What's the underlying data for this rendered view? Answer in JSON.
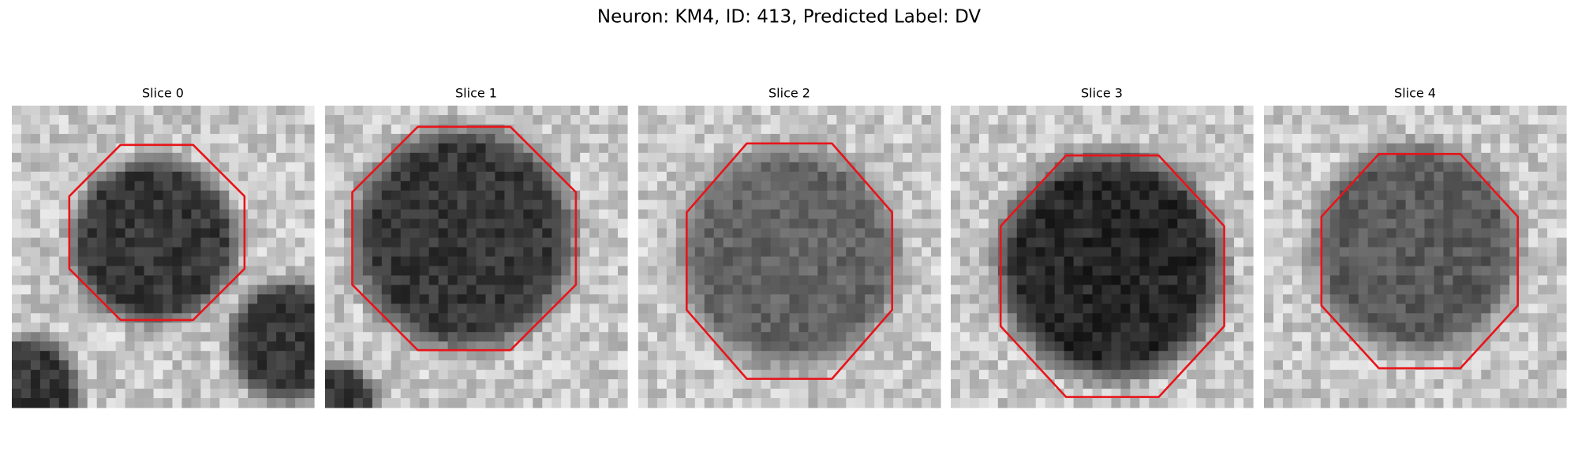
{
  "title": "Neuron: KM4, ID: 413, Predicted Label: DV",
  "panels": [
    {
      "title": "Slice 0"
    },
    {
      "title": "Slice 1"
    },
    {
      "title": "Slice 2"
    },
    {
      "title": "Slice 3"
    },
    {
      "title": "Slice 4"
    }
  ]
}
